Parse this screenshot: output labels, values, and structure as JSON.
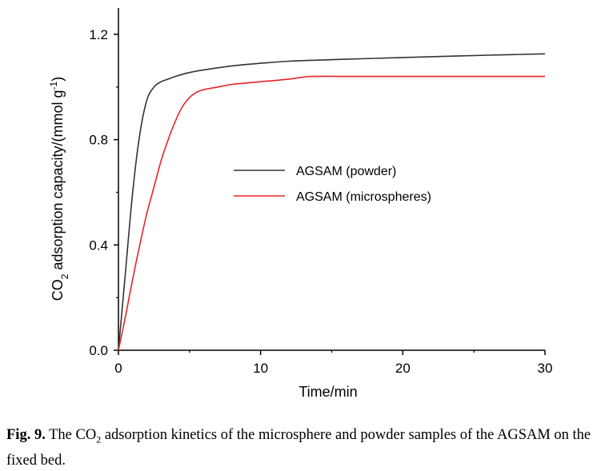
{
  "chart_data": {
    "type": "line",
    "xlabel": "Time/min",
    "ylabel": {
      "prefix": "CO",
      "sub": "2",
      "middle": " adsorption capacity/(mmol g",
      "sup": "-1",
      "suffix": ")"
    },
    "xlim": [
      0,
      30
    ],
    "ylim": [
      0,
      1.3
    ],
    "xticks": [
      0,
      10,
      20,
      30
    ],
    "xtick_labels": [
      "0",
      "10",
      "20",
      "30"
    ],
    "yticks": [
      0.0,
      0.4,
      0.8,
      1.2
    ],
    "ytick_labels": [
      "0.0",
      "0.4",
      "0.8",
      "1.2"
    ],
    "grid": false,
    "legend_position": "center",
    "series": [
      {
        "name": "AGSAM (powder)",
        "color": "#333333",
        "x": [
          0,
          0.5,
          1,
          1.5,
          2,
          2.5,
          3,
          3.5,
          4,
          5,
          6,
          8,
          10,
          12,
          14,
          17,
          20,
          24,
          27,
          30
        ],
        "y": [
          0,
          0.3,
          0.6,
          0.82,
          0.95,
          1.0,
          1.02,
          1.03,
          1.04,
          1.055,
          1.065,
          1.08,
          1.09,
          1.098,
          1.102,
          1.107,
          1.112,
          1.118,
          1.122,
          1.126
        ]
      },
      {
        "name": "AGSAM (microspheres)",
        "color": "#e8232a",
        "x": [
          0,
          0.5,
          1,
          1.5,
          2,
          2.5,
          3,
          3.5,
          4,
          4.5,
          5,
          5.5,
          6,
          7,
          8,
          10,
          12,
          13.5,
          16,
          20,
          25,
          30
        ],
        "y": [
          0,
          0.13,
          0.27,
          0.4,
          0.52,
          0.62,
          0.72,
          0.8,
          0.87,
          0.925,
          0.96,
          0.98,
          0.99,
          1.0,
          1.01,
          1.02,
          1.03,
          1.04,
          1.04,
          1.04,
          1.04,
          1.04
        ]
      }
    ]
  },
  "caption": {
    "label": "Fig. 9.",
    "pre": " The CO",
    "sub": "2",
    "post": " adsorption kinetics of the microsphere and powder samples of the AGSAM on the fixed bed."
  }
}
